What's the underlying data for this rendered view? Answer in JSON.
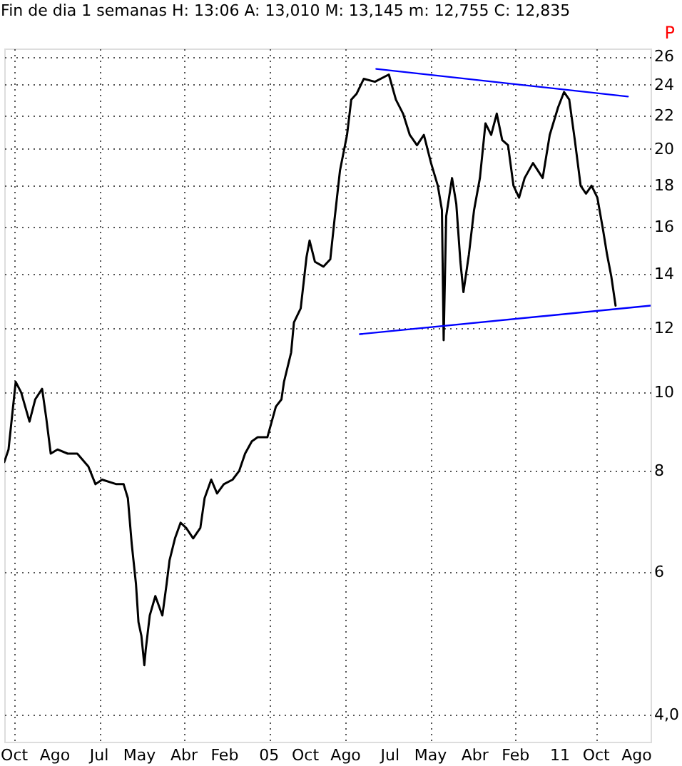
{
  "chart_data": {
    "type": "line",
    "title": "Fin de dia 1 semanas  H: 13:06  A: 13,010  M: 13,145  m: 12,755  C: 12,835",
    "annotations": [
      "P"
    ],
    "xlim": [
      "1999-07-17",
      "2012-11-14"
    ],
    "ylim": [
      3.7,
      26.6
    ],
    "log": true,
    "grid": true,
    "marker": "none",
    "line_style": "solid",
    "xticks": [
      {
        "value": "1999-10-01",
        "label": "Oct"
      },
      {
        "value": "2000-08-01",
        "label": "Ago"
      },
      {
        "value": "2001-07-01",
        "label": "Jul"
      },
      {
        "value": "2002-05-01",
        "label": "May"
      },
      {
        "value": "2003-04-01",
        "label": "Abr"
      },
      {
        "value": "2004-02-01",
        "label": "Feb"
      },
      {
        "value": "2005-01-01",
        "label": "05"
      },
      {
        "value": "2005-10-01",
        "label": "Oct"
      },
      {
        "value": "2006-08-01",
        "label": "Ago"
      },
      {
        "value": "2007-07-01",
        "label": "Jul"
      },
      {
        "value": "2008-05-01",
        "label": "May"
      },
      {
        "value": "2009-04-01",
        "label": "Abr"
      },
      {
        "value": "2010-02-01",
        "label": "Feb"
      },
      {
        "value": "2011-01-01",
        "label": "11"
      },
      {
        "value": "2011-10-01",
        "label": "Oct"
      },
      {
        "value": "2012-08-01",
        "label": "Ago"
      }
    ],
    "yticks": [
      26,
      24,
      22,
      20,
      18,
      16,
      14,
      12,
      10,
      8,
      6,
      {
        "value": 4,
        "label": "4,0"
      }
    ],
    "series": [
      {
        "color": "#000000",
        "x": [
          "1999-07-17",
          "1999-08-18",
          "1999-10-11",
          "1999-11-21",
          "2000-01-23",
          "2000-03-06",
          "2000-04-27",
          "2000-05-28",
          "2000-07-01",
          "2000-08-21",
          "2000-11-05",
          "2001-01-17",
          "2001-04-10",
          "2001-06-03",
          "2001-07-23",
          "2001-11-08",
          "2002-01-01",
          "2002-02-02",
          "2002-03-03",
          "2002-04-04",
          "2002-04-23",
          "2002-05-15",
          "2002-06-06",
          "2002-06-16",
          "2002-07-17",
          "2002-08-28",
          "2002-10-20",
          "2002-11-21",
          "2002-12-13",
          "2003-01-23",
          "2003-03-06",
          "2003-04-17",
          "2003-06-09",
          "2003-08-02",
          "2003-09-03",
          "2003-10-23",
          "2003-12-06",
          "2004-01-26",
          "2004-04-01",
          "2004-05-21",
          "2004-07-04",
          "2004-08-24",
          "2004-10-07",
          "2004-12-19",
          "2005-02-21",
          "2005-04-04",
          "2005-04-23",
          "2005-06-16",
          "2005-07-07",
          "2005-08-27",
          "2005-10-10",
          "2005-11-02",
          "2005-12-12",
          "2006-02-15",
          "2006-04-07",
          "2006-05-08",
          "2006-06-19",
          "2006-08-11",
          "2006-09-12",
          "2006-10-23",
          "2006-12-15",
          "2007-03-09",
          "2007-06-22",
          "2007-08-14",
          "2007-10-07",
          "2007-11-27",
          "2008-01-20",
          "2008-03-12",
          "2008-05-05",
          "2008-06-25",
          "2008-07-26",
          "2008-08-08",
          "2008-08-27",
          "2008-10-10",
          "2008-11-11",
          "2008-12-12",
          "2009-01-04",
          "2009-02-14",
          "2009-03-25",
          "2009-05-08",
          "2009-06-19",
          "2009-08-01",
          "2009-09-12",
          "2009-10-23",
          "2009-12-06",
          "2010-01-16",
          "2010-02-27",
          "2010-04-10",
          "2010-06-12",
          "2010-08-24",
          "2010-10-16",
          "2010-12-18",
          "2011-02-01",
          "2011-03-12",
          "2011-04-23",
          "2011-06-06",
          "2011-07-16",
          "2011-08-27",
          "2011-10-10",
          "2011-11-21",
          "2011-12-22",
          "2012-01-23",
          "2012-02-24"
        ],
        "values": [
          8.2,
          8.5,
          10.3,
          10.0,
          9.2,
          9.8,
          10.1,
          9.3,
          8.4,
          8.5,
          8.4,
          8.4,
          8.1,
          7.7,
          7.8,
          7.7,
          7.7,
          7.4,
          6.5,
          5.8,
          5.2,
          5.0,
          4.6,
          4.8,
          5.3,
          5.6,
          5.3,
          5.8,
          6.2,
          6.6,
          6.9,
          6.8,
          6.6,
          6.8,
          7.4,
          7.8,
          7.5,
          7.7,
          7.8,
          8.0,
          8.4,
          8.7,
          8.8,
          8.8,
          9.6,
          9.8,
          10.3,
          11.2,
          12.2,
          12.7,
          14.7,
          15.4,
          14.5,
          14.3,
          14.6,
          16.3,
          18.8,
          20.8,
          23.0,
          23.4,
          24.4,
          24.2,
          24.7,
          23.0,
          22.1,
          20.8,
          20.2,
          20.8,
          19.2,
          18.0,
          16.8,
          11.6,
          16.5,
          18.4,
          17.1,
          14.5,
          13.3,
          14.8,
          16.8,
          18.4,
          21.5,
          20.8,
          22.1,
          20.5,
          20.2,
          18.0,
          17.4,
          18.4,
          19.2,
          18.4,
          20.8,
          22.5,
          23.5,
          23.0,
          20.5,
          18.0,
          17.6,
          18.0,
          17.4,
          15.9,
          14.8,
          13.9,
          12.8
        ]
      },
      {
        "color": "#0000ff",
        "x": [
          "2007-03-19",
          "2012-05-27"
        ],
        "values": [
          25.1,
          23.2
        ]
      },
      {
        "color": "#0000ff",
        "x": [
          "2006-11-15",
          "2012-11-14"
        ],
        "values": [
          11.8,
          12.8
        ]
      }
    ]
  }
}
